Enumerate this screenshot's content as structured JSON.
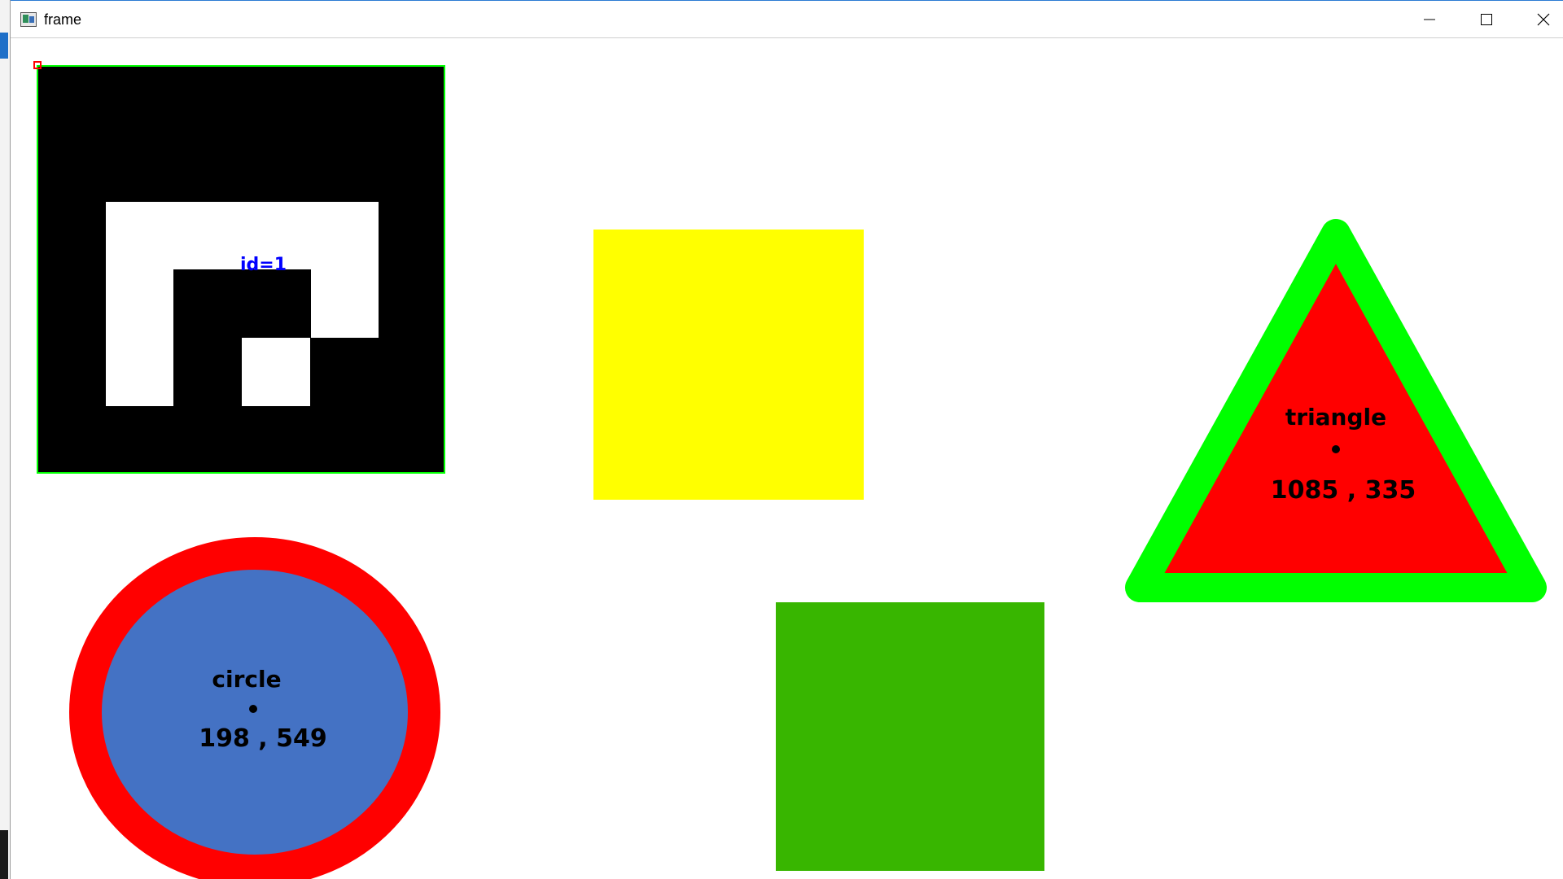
{
  "window": {
    "title": "frame",
    "controls": [
      "minimize-icon",
      "maximize-icon",
      "close-icon"
    ]
  },
  "marker": {
    "label": "id=1",
    "label_color": "#0000ff",
    "outline_color": "#00ff00",
    "corner_color": "#ff0000"
  },
  "shapes": {
    "circle": {
      "name": "circle",
      "coords": "198 , 549",
      "fill": "#4472c4",
      "outline": "#ff0000"
    },
    "triangle": {
      "name": "triangle",
      "coords": "1085 , 335",
      "fill": "#ff0000",
      "outline": "#00ff00"
    },
    "yellow_square": {
      "fill": "#ffff00"
    },
    "green_square": {
      "fill": "#38b600"
    }
  }
}
